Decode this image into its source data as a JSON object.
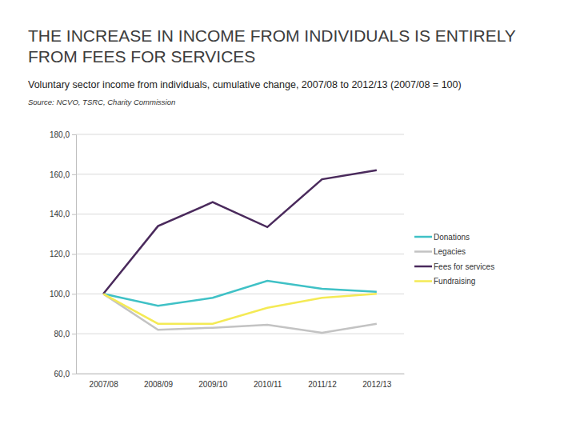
{
  "chart_data": {
    "type": "line",
    "title": "THE INCREASE IN INCOME FROM INDIVIDUALS IS ENTIRELY FROM FEES FOR SERVICES",
    "subtitle": "Voluntary sector income from individuals, cumulative change, 2007/08 to 2012/13 (2007/08 = 100)",
    "source": "Source: NCVO, TSRC, Charity Commission",
    "categories": [
      "2007/08",
      "2008/09",
      "2009/10",
      "2010/11",
      "2011/12",
      "2012/13"
    ],
    "series": [
      {
        "name": "Donations",
        "color": "#3fc1c6",
        "values": [
          100,
          94,
          98,
          106.5,
          102.5,
          101
        ]
      },
      {
        "name": "Legacies",
        "color": "#c3c3c3",
        "values": [
          100,
          82,
          83,
          84.5,
          80.5,
          85
        ]
      },
      {
        "name": "Fees for services",
        "color": "#4a2a5c",
        "values": [
          100,
          134,
          146,
          133.5,
          157.5,
          162
        ]
      },
      {
        "name": "Fundraising",
        "color": "#f4ea55",
        "values": [
          100,
          85,
          85,
          93,
          98,
          100
        ]
      }
    ],
    "ylim": [
      60,
      180
    ],
    "yticks": [
      {
        "value": 60,
        "label": "60,0"
      },
      {
        "value": 80,
        "label": "80,0"
      },
      {
        "value": 100,
        "label": "100,0"
      },
      {
        "value": 120,
        "label": "120,0"
      },
      {
        "value": 140,
        "label": "140,0"
      },
      {
        "value": 160,
        "label": "160,0"
      },
      {
        "value": 180,
        "label": "180,0"
      }
    ],
    "grid": true,
    "legend": "right"
  }
}
